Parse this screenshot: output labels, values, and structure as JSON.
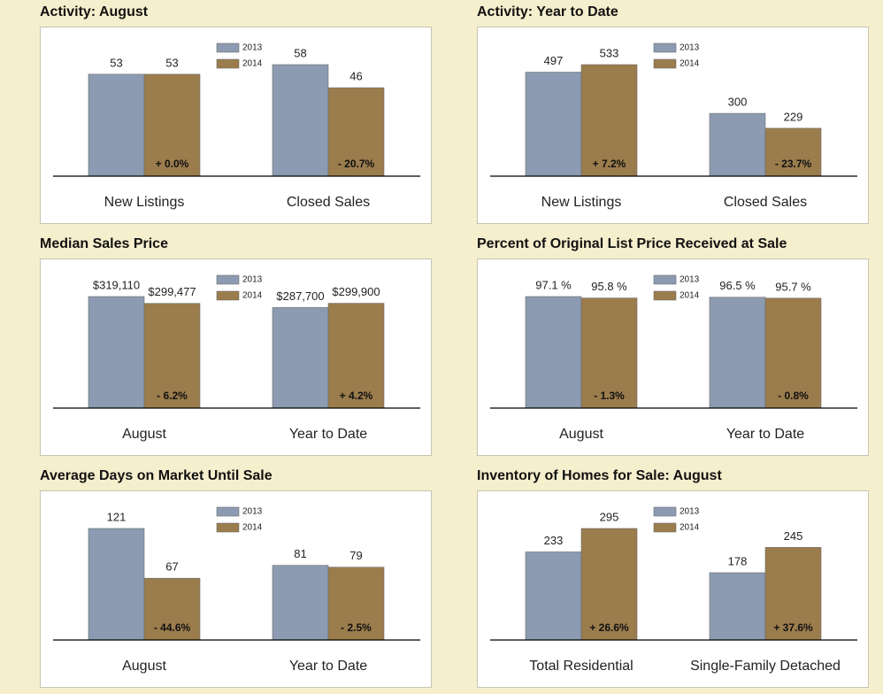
{
  "chart_data": [
    {
      "type": "bar",
      "title": "Activity: August",
      "categories": [
        "New Listings",
        "Closed Sales"
      ],
      "series": [
        {
          "name": "2013",
          "color": "#8c9bb1",
          "values": [
            53,
            58
          ]
        },
        {
          "name": "2014",
          "color": "#9b7c4c",
          "values": [
            53,
            46
          ]
        }
      ],
      "annotations": [
        "+ 0.0%",
        "- 20.7%"
      ]
    },
    {
      "type": "bar",
      "title": "Activity: Year to Date",
      "categories": [
        "New Listings",
        "Closed Sales"
      ],
      "series": [
        {
          "name": "2013",
          "color": "#8c9bb1",
          "values": [
            497,
            300
          ]
        },
        {
          "name": "2014",
          "color": "#9b7c4c",
          "values": [
            533,
            229
          ]
        }
      ],
      "annotations": [
        "+ 7.2%",
        "- 23.7%"
      ]
    },
    {
      "type": "bar",
      "title": "Median Sales Price",
      "categories": [
        "August",
        "Year to Date"
      ],
      "series": [
        {
          "name": "2013",
          "color": "#8c9bb1",
          "values": [
            319110,
            287700
          ],
          "value_labels": [
            "$319,110",
            "$287,700"
          ]
        },
        {
          "name": "2014",
          "color": "#9b7c4c",
          "values": [
            299477,
            299900
          ],
          "value_labels": [
            "$299,477",
            "$299,900"
          ]
        }
      ],
      "annotations": [
        "- 6.2%",
        "+ 4.2%"
      ]
    },
    {
      "type": "bar",
      "title": "Percent of Original List Price Received at Sale",
      "categories": [
        "August",
        "Year to Date"
      ],
      "series": [
        {
          "name": "2013",
          "color": "#8c9bb1",
          "values": [
            97.1,
            96.5
          ],
          "value_labels": [
            "97.1 %",
            "96.5 %"
          ]
        },
        {
          "name": "2014",
          "color": "#9b7c4c",
          "values": [
            95.8,
            95.7
          ],
          "value_labels": [
            "95.8 %",
            "95.7 %"
          ]
        }
      ],
      "annotations": [
        "- 1.3%",
        "- 0.8%"
      ]
    },
    {
      "type": "bar",
      "title": "Average Days on Market Until Sale",
      "categories": [
        "August",
        "Year to Date"
      ],
      "series": [
        {
          "name": "2013",
          "color": "#8c9bb1",
          "values": [
            121,
            81
          ]
        },
        {
          "name": "2014",
          "color": "#9b7c4c",
          "values": [
            67,
            79
          ]
        }
      ],
      "annotations": [
        "- 44.6%",
        "- 2.5%"
      ]
    },
    {
      "type": "bar",
      "title": "Inventory of Homes for Sale: August",
      "categories": [
        "Total Residential",
        "Single-Family Detached"
      ],
      "series": [
        {
          "name": "2013",
          "color": "#8c9bb1",
          "values": [
            233,
            178
          ]
        },
        {
          "name": "2014",
          "color": "#9b7c4c",
          "values": [
            295,
            245
          ]
        }
      ],
      "annotations": [
        "+ 26.6%",
        "+ 37.6%"
      ]
    }
  ]
}
